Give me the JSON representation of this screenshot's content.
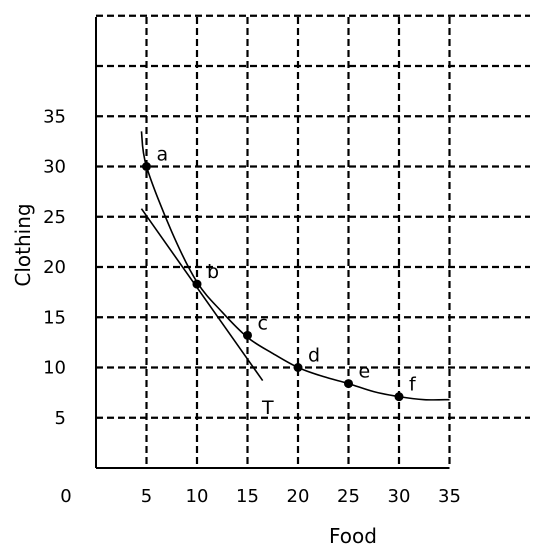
{
  "chart_data": {
    "type": "line",
    "xlabel": "Food",
    "ylabel": "Clothing",
    "origin_label": "0",
    "x_ticks": [
      5,
      10,
      15,
      20,
      25,
      30,
      35
    ],
    "y_ticks": [
      5,
      10,
      15,
      20,
      25,
      30,
      35
    ],
    "xlim": [
      0,
      35
    ],
    "ylim": [
      0,
      35
    ],
    "grid": true,
    "grid_style": "dashed",
    "series": [
      {
        "kind": "curve",
        "x": [
          4.5,
          5,
          7.5,
          10,
          12.5,
          15,
          17.5,
          20,
          22.5,
          25,
          27.5,
          30,
          32.5,
          35
        ],
        "y": [
          33.5,
          30,
          23.5,
          18.5,
          15.5,
          13,
          11.4,
          10,
          9.1,
          8.4,
          7.6,
          7.1,
          6.8,
          6.8
        ]
      },
      {
        "kind": "tangent",
        "label": "T",
        "x": [
          4.5,
          16.5
        ],
        "y": [
          25.8,
          8.7
        ]
      }
    ],
    "points": [
      {
        "label": "a",
        "x": 5,
        "y": 30
      },
      {
        "label": "b",
        "x": 10,
        "y": 18.3
      },
      {
        "label": "c",
        "x": 15,
        "y": 13.2
      },
      {
        "label": "d",
        "x": 20,
        "y": 10
      },
      {
        "label": "e",
        "x": 25,
        "y": 8.4
      },
      {
        "label": "f",
        "x": 30,
        "y": 7.1
      }
    ]
  }
}
